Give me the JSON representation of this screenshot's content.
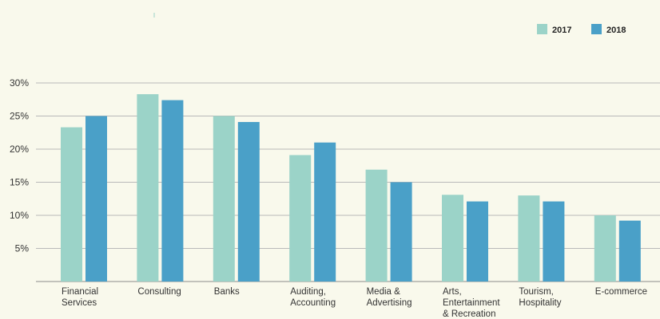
{
  "chart_data": {
    "type": "bar",
    "categories": [
      [
        "Financial",
        "Services"
      ],
      [
        "Consulting"
      ],
      [
        "Banks"
      ],
      [
        "Auditing,",
        "Accounting"
      ],
      [
        "Media &",
        "Advertising"
      ],
      [
        "Arts,",
        "Entertainment",
        "& Recreation"
      ],
      [
        "Tourism,",
        "Hospitality"
      ],
      [
        "E-commerce"
      ]
    ],
    "series": [
      {
        "name": "2017",
        "color": "#9bd3c8",
        "values": [
          23.3,
          28.3,
          25.0,
          19.1,
          16.9,
          13.1,
          13.0,
          10.0
        ]
      },
      {
        "name": "2018",
        "color": "#4aa0c8",
        "values": [
          25.0,
          27.4,
          24.1,
          21.0,
          15.0,
          12.1,
          12.1,
          9.2
        ]
      }
    ],
    "y_ticks": [
      "5%",
      "10%",
      "15%",
      "20%",
      "25%",
      "30%"
    ],
    "ylim": [
      0,
      30
    ],
    "grid": true,
    "legend_position": "top-right",
    "title": "",
    "xlabel": "",
    "ylabel": ""
  }
}
